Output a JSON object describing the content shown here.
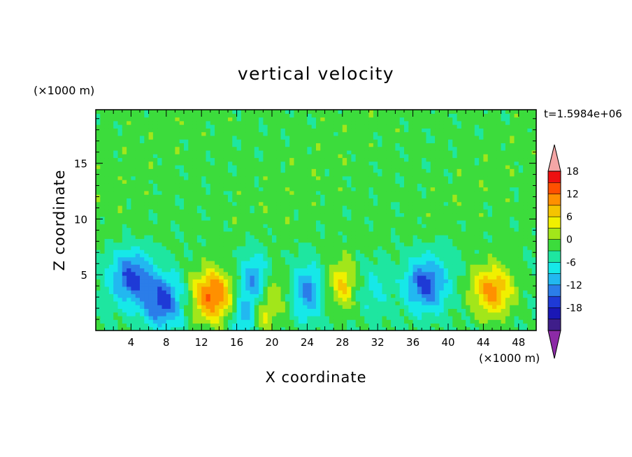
{
  "chart_data": {
    "type": "heatmap",
    "title": "vertical velocity",
    "xlabel": "X coordinate",
    "ylabel": "Z coordinate",
    "x_unit": "(×1000 m)",
    "y_unit": "(×1000 m)",
    "time_label": "t=1.5984e+06",
    "xlim": [
      0,
      50
    ],
    "ylim": [
      0,
      19.8
    ],
    "x_ticks": [
      4,
      8,
      12,
      16,
      20,
      24,
      28,
      32,
      36,
      40,
      44,
      48
    ],
    "y_ticks": [
      5,
      10,
      15
    ],
    "colorbar": {
      "levels": [
        -21,
        -18,
        -15,
        -12,
        -9,
        -6,
        -3,
        0,
        3,
        6,
        9,
        12,
        15,
        18,
        21
      ],
      "tick_labels": [
        18,
        12,
        6,
        0,
        -6,
        -12,
        -18
      ],
      "colors": [
        "#8c2aa6",
        "#3f1e8a",
        "#1a17b5",
        "#1e3ad6",
        "#2b7de9",
        "#22b8f0",
        "#16e8e8",
        "#1ee6a0",
        "#3cdc3c",
        "#a2e61a",
        "#f0f000",
        "#f5c400",
        "#ff9000",
        "#ff5000",
        "#ee1010",
        "#f4a6a6"
      ],
      "extend": "both"
    },
    "features": [
      {
        "x": 4.0,
        "z": 4.8,
        "w": -13
      },
      {
        "x": 7.6,
        "z": 2.6,
        "w": -13
      },
      {
        "x": 13.2,
        "z": 3.2,
        "w": 16
      },
      {
        "x": 17.0,
        "z": 1.2,
        "w": -8
      },
      {
        "x": 18.8,
        "z": 1.4,
        "w": 7
      },
      {
        "x": 18.0,
        "z": 4.5,
        "w": -9
      },
      {
        "x": 20.5,
        "z": 3.5,
        "w": 4
      },
      {
        "x": 24.0,
        "z": 3.5,
        "w": -10
      },
      {
        "x": 28.0,
        "z": 4.2,
        "w": 9
      },
      {
        "x": 31.5,
        "z": 3.5,
        "w": -4
      },
      {
        "x": 37.5,
        "z": 4.2,
        "w": -13
      },
      {
        "x": 45.0,
        "z": 3.6,
        "w": 13
      }
    ]
  }
}
